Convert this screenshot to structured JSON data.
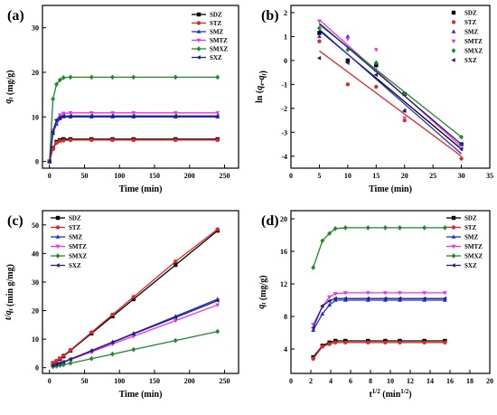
{
  "figure": {
    "series_names": [
      "SDZ",
      "STZ",
      "SMZ",
      "SMTZ",
      "SMXZ",
      "SXZ"
    ],
    "series_colors": [
      "#000000",
      "#e8262a",
      "#2030e0",
      "#ee33ee",
      "#1e8a28",
      "#20207a"
    ],
    "panel_labels": [
      "(a)",
      "(b)",
      "(c)",
      "(d)"
    ]
  },
  "chart_data": [
    {
      "type": "line",
      "panel": "(a)",
      "xlabel": "Time (min)",
      "ylabel": "qt (mg/g)",
      "xlim": [
        -10,
        270
      ],
      "ylim": [
        -1.5,
        35
      ],
      "xticks": [
        0,
        50,
        100,
        150,
        200,
        250
      ],
      "yticks": [
        0,
        10,
        20,
        30
      ],
      "legend_position": "top-right",
      "x": [
        0,
        5,
        10,
        15,
        20,
        30,
        60,
        90,
        120,
        180,
        240
      ],
      "series": [
        {
          "name": "SDZ",
          "values": [
            0,
            3.0,
            4.4,
            4.8,
            5.0,
            5.0,
            5.0,
            5.0,
            5.0,
            5.0,
            5.0
          ]
        },
        {
          "name": "STZ",
          "values": [
            0,
            2.8,
            4.2,
            4.6,
            4.7,
            4.8,
            4.8,
            4.8,
            4.8,
            4.8,
            4.8
          ]
        },
        {
          "name": "SMZ",
          "values": [
            0,
            6.3,
            8.4,
            9.6,
            10.0,
            10.0,
            10.0,
            10.0,
            10.0,
            10.0,
            10.0
          ]
        },
        {
          "name": "SMTZ",
          "values": [
            0,
            7.0,
            9.2,
            10.4,
            10.8,
            10.9,
            10.9,
            10.9,
            10.9,
            10.9,
            10.9
          ]
        },
        {
          "name": "SMXZ",
          "values": [
            0,
            14.0,
            17.3,
            18.3,
            18.8,
            18.9,
            18.9,
            18.9,
            18.9,
            18.9,
            18.9
          ]
        },
        {
          "name": "SXZ",
          "values": [
            0,
            6.6,
            9.3,
            9.9,
            10.2,
            10.2,
            10.2,
            10.2,
            10.2,
            10.2,
            10.2
          ]
        }
      ]
    },
    {
      "type": "scatter",
      "panel": "(b)",
      "xlabel": "Time (min)",
      "ylabel": "ln (qe-qt)",
      "xlim": [
        0,
        35
      ],
      "ylim": [
        -4.5,
        2.3
      ],
      "xticks": [
        0,
        5,
        10,
        15,
        20,
        25,
        30,
        35
      ],
      "yticks": [
        -4,
        -3,
        -2,
        -1,
        0,
        1,
        2
      ],
      "legend_position": "top-right",
      "x": [
        5,
        10,
        15,
        20,
        30
      ],
      "series": [
        {
          "name": "SDZ",
          "values": [
            1.15,
            0.0,
            -0.2,
            -1.4,
            -3.5
          ],
          "fit": [
            1.25,
            -3.7
          ]
        },
        {
          "name": "STZ",
          "values": [
            0.8,
            -1.0,
            -1.1,
            -2.5,
            -4.1
          ],
          "fit": [
            0.4,
            -4.0
          ]
        },
        {
          "name": "SMZ",
          "values": [
            1.0,
            1.0,
            -0.4,
            -2.1,
            -3.5
          ],
          "fit": [
            1.3,
            -3.9
          ]
        },
        {
          "name": "SMTZ",
          "values": [
            1.65,
            0.9,
            0.45,
            -2.4,
            -3.7
          ],
          "fit": [
            1.7,
            -3.6
          ]
        },
        {
          "name": "SMXZ",
          "values": [
            1.35,
            0.45,
            -0.1,
            -1.4,
            -3.2
          ],
          "fit": [
            1.5,
            -3.2
          ]
        },
        {
          "name": "SXZ",
          "values": [
            0.1,
            -0.1,
            -0.6,
            -2.1,
            -3.7
          ],
          "fit": [
            1.55,
            -3.5
          ]
        }
      ]
    },
    {
      "type": "line",
      "panel": "(c)",
      "xlabel": "Time (min)",
      "ylabel": "t/qt (min g/mg)",
      "xlim": [
        -10,
        270
      ],
      "ylim": [
        -2,
        55
      ],
      "xticks": [
        0,
        50,
        100,
        150,
        200,
        250
      ],
      "yticks": [
        0,
        10,
        20,
        30,
        40,
        50
      ],
      "legend_position": "top-left",
      "x": [
        5,
        10,
        15,
        20,
        30,
        60,
        90,
        120,
        180,
        240
      ],
      "series": [
        {
          "name": "SDZ",
          "values": [
            1.6,
            2.2,
            3.1,
            4.0,
            6.0,
            12.0,
            18.0,
            24.0,
            36.0,
            48.0
          ]
        },
        {
          "name": "STZ",
          "values": [
            1.7,
            2.4,
            3.3,
            4.3,
            6.2,
            12.4,
            18.6,
            24.8,
            37.2,
            48.5
          ]
        },
        {
          "name": "SMZ",
          "values": [
            0.8,
            1.2,
            1.6,
            2.0,
            3.0,
            6.0,
            9.0,
            12.0,
            18.0,
            24.0
          ]
        },
        {
          "name": "SMTZ",
          "values": [
            0.7,
            1.1,
            1.4,
            1.85,
            2.8,
            5.5,
            8.3,
            11.0,
            16.5,
            22.0
          ]
        },
        {
          "name": "SMXZ",
          "values": [
            0.36,
            0.58,
            0.82,
            1.06,
            1.59,
            3.17,
            4.76,
            6.35,
            9.52,
            12.7
          ]
        },
        {
          "name": "SXZ",
          "values": [
            0.76,
            1.08,
            1.52,
            1.96,
            2.94,
            5.88,
            8.82,
            11.8,
            17.6,
            23.5
          ]
        }
      ]
    },
    {
      "type": "line",
      "panel": "(d)",
      "xlabel": "t1/2 (min1/2)",
      "ylabel": "qt (mg/g)",
      "xlim": [
        0,
        20
      ],
      "ylim": [
        1,
        21
      ],
      "xticks": [
        0,
        2,
        4,
        6,
        8,
        10,
        12,
        14,
        16,
        18,
        20
      ],
      "yticks": [
        4,
        8,
        12,
        16,
        20
      ],
      "legend_position": "top-right",
      "x": [
        2.24,
        3.16,
        3.87,
        4.47,
        5.48,
        7.75,
        9.49,
        10.95,
        13.42,
        15.49
      ],
      "series": [
        {
          "name": "SDZ",
          "values": [
            3.0,
            4.4,
            4.8,
            5.0,
            5.0,
            5.0,
            5.0,
            5.0,
            5.0,
            5.0
          ]
        },
        {
          "name": "STZ",
          "values": [
            2.8,
            4.3,
            4.6,
            4.8,
            4.8,
            4.8,
            4.8,
            4.8,
            4.8,
            4.8
          ]
        },
        {
          "name": "SMZ",
          "values": [
            6.3,
            8.3,
            9.4,
            10.0,
            10.0,
            10.0,
            10.0,
            10.0,
            10.0,
            10.0
          ]
        },
        {
          "name": "SMTZ",
          "values": [
            7.0,
            9.2,
            10.4,
            10.8,
            10.9,
            10.9,
            10.9,
            10.9,
            10.9,
            10.9
          ]
        },
        {
          "name": "SMXZ",
          "values": [
            14.0,
            17.3,
            18.2,
            18.8,
            18.9,
            18.9,
            18.9,
            18.9,
            18.9,
            18.9
          ]
        },
        {
          "name": "SXZ",
          "values": [
            6.6,
            9.3,
            9.9,
            10.2,
            10.2,
            10.2,
            10.2,
            10.2,
            10.2,
            10.2
          ]
        }
      ]
    }
  ]
}
